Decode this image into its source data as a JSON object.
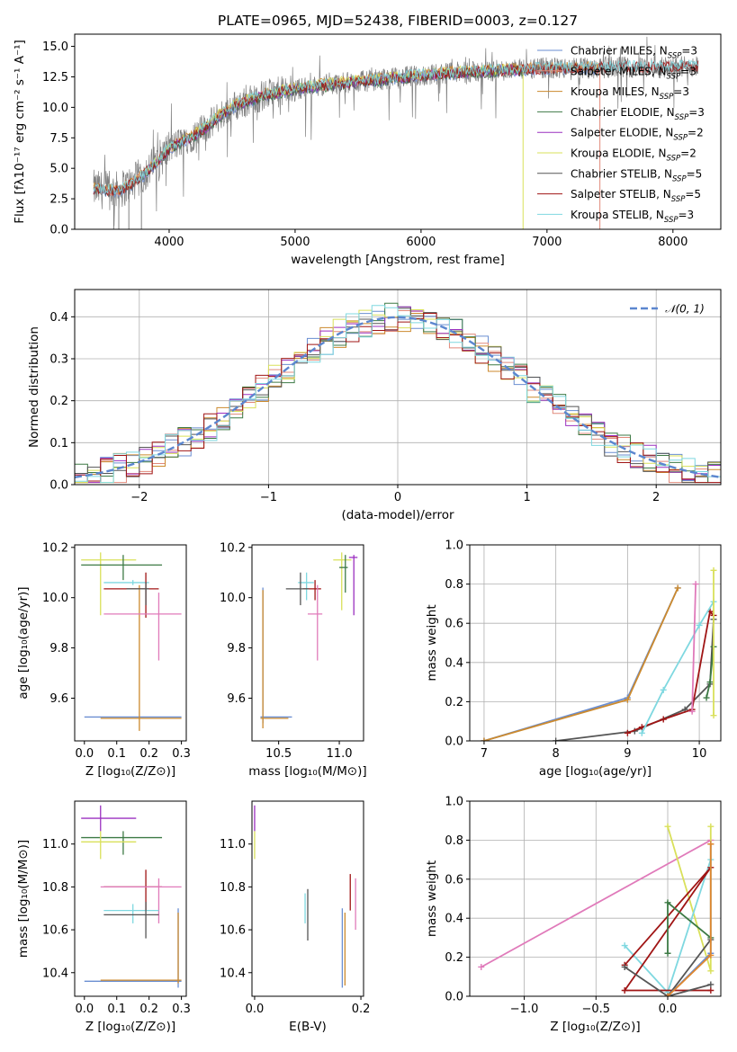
{
  "colors": {
    "Chabrier MILES": "#6a8ed1",
    "Salpeter MILES": "#e0897a",
    "Kroupa MILES": "#cc8a2e",
    "Chabrier ELODIE": "#3d7a45",
    "Salpeter ELODIE": "#9b30c0",
    "Kroupa ELODIE": "#d9e05a",
    "Chabrier STELIB": "#555555",
    "Salpeter STELIB": "#a01515",
    "Kroupa STELIB": "#7fd8e0",
    "pink": "#e07aba",
    "orange": "#e0872e",
    "gauss": "#5b86cf",
    "data": "#808080"
  },
  "chart_data": [
    {
      "id": "spectrum",
      "type": "line",
      "title": "PLATE=0965, MJD=52438, FIBERID=0003, z=0.127",
      "xlabel": "wavelength [Angstrom, rest frame]",
      "ylabel": "Flux [fλ10⁻¹⁷ erg cm⁻² s⁻¹ A⁻¹]",
      "xlim": [
        3250,
        8380
      ],
      "ylim": [
        0,
        16
      ],
      "x_ticks": [
        "4000",
        "5000",
        "6000",
        "7000",
        "8000"
      ],
      "y_ticks": [
        "0.0",
        "2.5",
        "5.0",
        "7.5",
        "10.0",
        "12.5",
        "15.0"
      ],
      "continuum": {
        "x": [
          3400,
          3500,
          3600,
          3700,
          3800,
          3900,
          4000,
          4100,
          4200,
          4300,
          4400,
          4500,
          4600,
          4700,
          4800,
          4900,
          5000,
          5200,
          5400,
          5600,
          5800,
          6000,
          6200,
          6400,
          6600,
          6800,
          7000,
          7200,
          7400,
          7600,
          7800,
          8000,
          8200
        ],
        "y": [
          3.3,
          3.2,
          3.2,
          3.7,
          4.5,
          5.5,
          6.6,
          7.2,
          7.7,
          8.4,
          9.3,
          10.0,
          10.4,
          10.8,
          11.1,
          11.3,
          11.5,
          11.8,
          12.0,
          12.2,
          12.4,
          12.6,
          12.8,
          12.9,
          13.0,
          13.1,
          13.2,
          13.2,
          13.25,
          13.3,
          13.3,
          13.35,
          13.4
        ]
      },
      "legend": [
        {
          "label": "Chabrier MILES, N",
          "sub": "SSP",
          "tail": "=3"
        },
        {
          "label": "Salpeter MILES, N",
          "sub": "SSP",
          "tail": "=3"
        },
        {
          "label": "Kroupa MILES, N",
          "sub": "SSP",
          "tail": "=3"
        },
        {
          "label": "Chabrier ELODIE, N",
          "sub": "SSP",
          "tail": "=3"
        },
        {
          "label": "Salpeter ELODIE, N",
          "sub": "SSP",
          "tail": "=2"
        },
        {
          "label": "Kroupa ELODIE, N",
          "sub": "SSP",
          "tail": "=2"
        },
        {
          "label": "Chabrier STELIB, N",
          "sub": "SSP",
          "tail": "=5"
        },
        {
          "label": "Salpeter STELIB, N",
          "sub": "SSP",
          "tail": "=5"
        },
        {
          "label": "Kroupa STELIB, N",
          "sub": "SSP",
          "tail": "=3"
        }
      ]
    },
    {
      "id": "residuals",
      "type": "line",
      "xlabel": "(data-model)/error",
      "ylabel": "Normed distribution",
      "xlim": [
        -2.5,
        2.5
      ],
      "ylim": [
        0,
        0.465
      ],
      "x_ticks": [
        "−2",
        "−1",
        "0",
        "1",
        "2"
      ],
      "y_ticks": [
        "0.0",
        "0.1",
        "0.2",
        "0.3",
        "0.4"
      ],
      "grid": true,
      "legend_label": "𝒩(0, 1)",
      "legend_position": "top-right",
      "bins": [
        -2.5,
        -2.4,
        -2.3,
        -2.2,
        -2.1,
        -2.0,
        -1.9,
        -1.8,
        -1.7,
        -1.6,
        -1.5,
        -1.4,
        -1.3,
        -1.2,
        -1.1,
        -1.0,
        -0.9,
        -0.8,
        -0.7,
        -0.6,
        -0.5,
        -0.4,
        -0.3,
        -0.2,
        -0.1,
        0.0,
        0.1,
        0.2,
        0.3,
        0.4,
        0.5,
        0.6,
        0.7,
        0.8,
        0.9,
        1.0,
        1.1,
        1.2,
        1.3,
        1.4,
        1.5,
        1.6,
        1.7,
        1.8,
        1.9,
        2.0,
        2.1,
        2.2,
        2.3,
        2.4,
        2.5
      ]
    },
    {
      "id": "age_vs_Z",
      "type": "scatter",
      "xlabel": "Z [log₁₀(Z/Z⊙)]",
      "ylabel": "age  [log₁₀(age/yr)]",
      "xlim": [
        -0.03,
        0.315
      ],
      "ylim": [
        9.43,
        10.21
      ],
      "x_ticks": [
        "0.0",
        "0.1",
        "0.2",
        "0.3"
      ],
      "y_ticks": [
        "9.6",
        "9.8",
        "10.0",
        "10.2"
      ],
      "points": [
        {
          "c": "Chabrier MILES",
          "x": 0.15,
          "y": 9.525,
          "xe": [
            0.0,
            0.3
          ],
          "ye": [
            9.525,
            9.525
          ]
        },
        {
          "c": "Kroupa MILES",
          "x": 0.17,
          "y": 9.52,
          "xe": [
            0.05,
            0.3
          ],
          "ye": [
            9.47,
            10.05
          ]
        },
        {
          "c": "Kroupa ELODIE",
          "x": 0.05,
          "y": 10.15,
          "xe": [
            -0.01,
            0.16
          ],
          "ye": [
            9.93,
            10.18
          ]
        },
        {
          "c": "Chabrier ELODIE",
          "x": 0.12,
          "y": 10.13,
          "xe": [
            -0.01,
            0.24
          ],
          "ye": [
            10.07,
            10.17
          ]
        },
        {
          "c": "Kroupa STELIB",
          "x": 0.15,
          "y": 10.06,
          "xe": [
            0.06,
            0.2
          ],
          "ye": [
            10.05,
            10.07
          ]
        },
        {
          "c": "Salpeter STELIB",
          "x": 0.19,
          "y": 10.035,
          "xe": [
            0.06,
            0.23
          ],
          "ye": [
            9.92,
            10.1
          ]
        },
        {
          "c": "Chabrier STELIB",
          "x": 0.19,
          "y": 10.035,
          "xe": [
            0.13,
            0.2
          ],
          "ye": [
            9.97,
            10.06
          ]
        },
        {
          "c": "pink",
          "x": 0.23,
          "y": 9.935,
          "xe": [
            0.06,
            0.3
          ],
          "ye": [
            9.75,
            10.02
          ]
        }
      ]
    },
    {
      "id": "age_vs_mass",
      "type": "scatter",
      "xlabel": "mass [log₁₀(M/M⊙)]",
      "ylabel": "",
      "xlim": [
        10.28,
        11.2
      ],
      "ylim": [
        9.43,
        10.21
      ],
      "x_ticks": [
        "10.5",
        "11.0"
      ],
      "y_ticks": [
        "9.6",
        "9.8",
        "10.0",
        "10.2"
      ],
      "points": [
        {
          "c": "Chabrier MILES",
          "x": 10.37,
          "y": 9.525,
          "xe": [
            10.35,
            10.61
          ],
          "ye": [
            9.5,
            10.04
          ]
        },
        {
          "c": "Kroupa MILES",
          "x": 10.37,
          "y": 9.52,
          "xe": [
            10.35,
            10.58
          ],
          "ye": [
            9.48,
            10.03
          ]
        },
        {
          "c": "Kroupa ELODIE",
          "x": 11.02,
          "y": 10.15,
          "xe": [
            10.95,
            11.1
          ],
          "ye": [
            9.95,
            10.18
          ]
        },
        {
          "c": "Salpeter ELODIE",
          "x": 11.12,
          "y": 10.16,
          "xe": [
            11.08,
            11.15
          ],
          "ye": [
            9.93,
            10.17
          ]
        },
        {
          "c": "Chabrier ELODIE",
          "x": 11.05,
          "y": 10.12,
          "xe": [
            11.0,
            11.07
          ],
          "ye": [
            10.02,
            10.17
          ]
        },
        {
          "c": "Kroupa STELIB",
          "x": 10.73,
          "y": 10.06,
          "xe": [
            10.66,
            10.79
          ],
          "ye": [
            9.99,
            10.1
          ]
        },
        {
          "c": "Salpeter STELIB",
          "x": 10.8,
          "y": 10.035,
          "xe": [
            10.7,
            10.85
          ],
          "ye": [
            9.99,
            10.07
          ]
        },
        {
          "c": "Chabrier STELIB",
          "x": 10.68,
          "y": 10.035,
          "xe": [
            10.56,
            10.75
          ],
          "ye": [
            9.97,
            10.1
          ]
        },
        {
          "c": "pink",
          "x": 10.82,
          "y": 9.935,
          "xe": [
            10.74,
            10.86
          ],
          "ye": [
            9.75,
            10.05
          ]
        }
      ]
    },
    {
      "id": "massweight_vs_age",
      "type": "line",
      "xlabel": "age  [log₁₀(age/yr)]",
      "ylabel": "mass weight",
      "xlim": [
        6.8,
        10.3
      ],
      "ylim": [
        0,
        1.0
      ],
      "x_ticks": [
        "7",
        "8",
        "9",
        "10"
      ],
      "y_ticks": [
        "0.0",
        "0.2",
        "0.4",
        "0.6",
        "0.8",
        "1.0"
      ],
      "grid": true,
      "series": [
        {
          "c": "Chabrier MILES",
          "x": [
            7.0,
            9.0,
            9.7
          ],
          "y": [
            0.0,
            0.22,
            0.78
          ]
        },
        {
          "c": "Kroupa MILES",
          "x": [
            7.0,
            9.0,
            9.7
          ],
          "y": [
            0.0,
            0.21,
            0.78
          ]
        },
        {
          "c": "Chabrier STELIB",
          "x": [
            8.0,
            9.1,
            9.8,
            10.15,
            10.2
          ],
          "y": [
            0.0,
            0.05,
            0.16,
            0.29,
            0.62
          ]
        },
        {
          "c": "Salpeter STELIB",
          "x": [
            9.0,
            9.2,
            9.5,
            9.9,
            10.15,
            10.2
          ],
          "y": [
            0.04,
            0.07,
            0.11,
            0.16,
            0.66,
            0.64
          ]
        },
        {
          "c": "Kroupa STELIB",
          "x": [
            9.2,
            9.5,
            10.0,
            10.2
          ],
          "y": [
            0.04,
            0.26,
            0.59,
            0.71
          ]
        },
        {
          "c": "Chabrier ELODIE",
          "x": [
            10.1,
            10.15,
            10.2
          ],
          "y": [
            0.22,
            0.3,
            0.48
          ]
        },
        {
          "c": "Kroupa ELODIE",
          "x": [
            10.2,
            10.2
          ],
          "y": [
            0.13,
            0.87
          ]
        },
        {
          "c": "pink",
          "x": [
            9.9,
            9.95
          ],
          "y": [
            0.15,
            0.8
          ]
        }
      ]
    },
    {
      "id": "mass_vs_Z",
      "type": "scatter",
      "xlabel": "Z [log₁₀(Z/Z⊙)]",
      "ylabel": "mass [log₁₀(M/M⊙)]",
      "xlim": [
        -0.03,
        0.315
      ],
      "ylim": [
        10.29,
        11.2
      ],
      "x_ticks": [
        "0.0",
        "0.1",
        "0.2",
        "0.3"
      ],
      "y_ticks": [
        "10.4",
        "10.6",
        "10.8",
        "11.0"
      ],
      "points": [
        {
          "c": "Salpeter ELODIE",
          "x": 0.05,
          "y": 11.12,
          "xe": [
            -0.01,
            0.16
          ],
          "ye": [
            11.06,
            11.18
          ]
        },
        {
          "c": "Chabrier ELODIE",
          "x": 0.12,
          "y": 11.03,
          "xe": [
            -0.01,
            0.24
          ],
          "ye": [
            10.95,
            11.06
          ]
        },
        {
          "c": "Kroupa ELODIE",
          "x": 0.05,
          "y": 11.01,
          "xe": [
            -0.01,
            0.16
          ],
          "ye": [
            10.93,
            11.06
          ]
        },
        {
          "c": "Salpeter STELIB",
          "x": 0.19,
          "y": 10.8,
          "xe": [
            0.06,
            0.24
          ],
          "ye": [
            10.69,
            10.88
          ]
        },
        {
          "c": "pink",
          "x": 0.23,
          "y": 10.8,
          "xe": [
            0.05,
            0.3
          ],
          "ye": [
            10.63,
            10.84
          ]
        },
        {
          "c": "Kroupa STELIB",
          "x": 0.15,
          "y": 10.69,
          "xe": [
            0.06,
            0.23
          ],
          "ye": [
            10.63,
            10.72
          ]
        },
        {
          "c": "Chabrier STELIB",
          "x": 0.19,
          "y": 10.67,
          "xe": [
            0.06,
            0.23
          ],
          "ye": [
            10.56,
            10.73
          ]
        },
        {
          "c": "Chabrier MILES",
          "x": 0.29,
          "y": 10.36,
          "xe": [
            0.0,
            0.3
          ],
          "ye": [
            10.33,
            10.7
          ]
        },
        {
          "c": "Kroupa MILES",
          "x": 0.29,
          "y": 10.365,
          "xe": [
            0.05,
            0.3
          ],
          "ye": [
            10.35,
            10.68
          ]
        }
      ]
    },
    {
      "id": "mass_vs_EBV",
      "type": "scatter",
      "xlabel": "E(B-V)",
      "ylabel": "",
      "xlim": [
        -0.005,
        0.205
      ],
      "ylim": [
        10.29,
        11.2
      ],
      "x_ticks": [
        "0.0",
        "0.2"
      ],
      "y_ticks": [
        "10.4",
        "10.6",
        "10.8",
        "11.0"
      ],
      "points": [
        {
          "c": "Salpeter ELODIE",
          "x": 0.0,
          "y": 11.12,
          "ye": [
            11.06,
            11.18
          ]
        },
        {
          "c": "Kroupa ELODIE",
          "x": 0.0,
          "y": 11.0,
          "ye": [
            10.93,
            11.06
          ]
        },
        {
          "c": "Kroupa STELIB",
          "x": 0.095,
          "y": 10.69,
          "ye": [
            10.63,
            10.77
          ]
        },
        {
          "c": "Chabrier STELIB",
          "x": 0.1,
          "y": 10.68,
          "ye": [
            10.55,
            10.79
          ]
        },
        {
          "c": "Salpeter STELIB",
          "x": 0.18,
          "y": 10.79,
          "ye": [
            10.69,
            10.86
          ]
        },
        {
          "c": "pink",
          "x": 0.19,
          "y": 10.78,
          "ye": [
            10.6,
            10.84
          ]
        },
        {
          "c": "Chabrier MILES",
          "x": 0.165,
          "y": 10.5,
          "ye": [
            10.33,
            10.7
          ]
        },
        {
          "c": "Kroupa MILES",
          "x": 0.17,
          "y": 10.5,
          "ye": [
            10.34,
            10.68
          ]
        }
      ]
    },
    {
      "id": "massweight_vs_Z",
      "type": "line",
      "xlabel": "Z [log₁₀(Z/Z⊙)]",
      "ylabel": "mass weight",
      "xlim": [
        -1.38,
        0.37
      ],
      "ylim": [
        0,
        1.0
      ],
      "x_ticks": [
        "−1.0",
        "−0.5",
        "0.0"
      ],
      "y_ticks": [
        "0.0",
        "0.2",
        "0.4",
        "0.6",
        "0.8",
        "1.0"
      ],
      "grid": true,
      "series": [
        {
          "c": "pink",
          "x": [
            -1.3,
            0.3
          ],
          "y": [
            0.15,
            0.8
          ]
        },
        {
          "c": "Kroupa ELODIE",
          "x": [
            0.0,
            0.3,
            0.3
          ],
          "y": [
            0.87,
            0.13,
            0.87
          ]
        },
        {
          "c": "Kroupa STELIB",
          "x": [
            -0.3,
            0.0,
            0.3
          ],
          "y": [
            0.26,
            0.02,
            0.7
          ]
        },
        {
          "c": "Salpeter STELIB",
          "x": [
            -0.3,
            0.3,
            -0.3,
            0.3
          ],
          "y": [
            0.16,
            0.66,
            0.03,
            0.03
          ]
        },
        {
          "c": "Chabrier STELIB",
          "x": [
            -0.3,
            0.0,
            0.3,
            0.0,
            0.3
          ],
          "y": [
            0.15,
            0.0,
            0.06,
            0.0,
            0.29
          ]
        },
        {
          "c": "Chabrier ELODIE",
          "x": [
            0.0,
            0.0,
            0.3
          ],
          "y": [
            0.22,
            0.48,
            0.3
          ]
        },
        {
          "c": "Chabrier MILES",
          "x": [
            0.0,
            0.3,
            0.3
          ],
          "y": [
            0.0,
            0.22,
            0.78
          ]
        },
        {
          "c": "orange",
          "x": [
            0.0,
            0.3,
            0.3
          ],
          "y": [
            0.0,
            0.21,
            0.78
          ]
        }
      ]
    }
  ]
}
